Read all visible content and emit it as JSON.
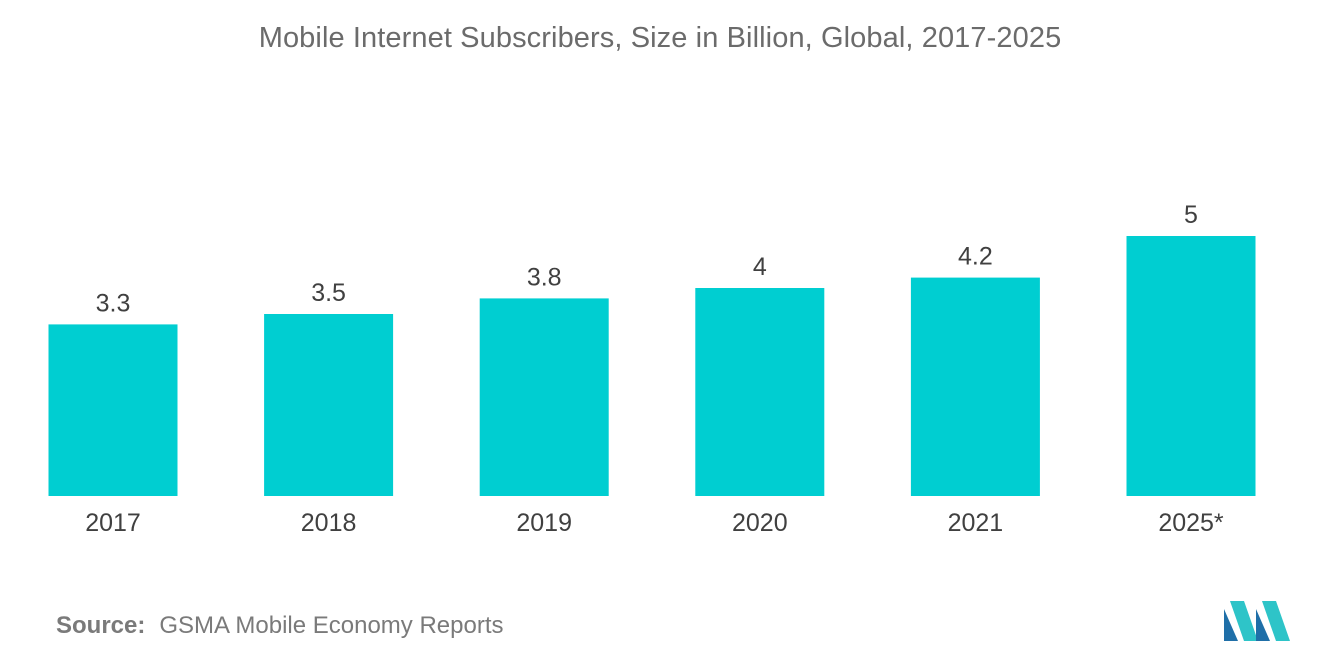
{
  "chart_data": {
    "type": "bar",
    "title": "Mobile Internet Subscribers, Size in Billion, Global, 2017-2025",
    "categories": [
      "2017",
      "2018",
      "2019",
      "2020",
      "2021",
      "2025*"
    ],
    "values": [
      3.3,
      3.5,
      3.8,
      4,
      4.2,
      5
    ],
    "value_labels": [
      "3.3",
      "3.5",
      "3.8",
      "4",
      "4.2",
      "5"
    ],
    "xlabel": "",
    "ylabel": "",
    "ylim": [
      0,
      5
    ],
    "grid": false,
    "legend": "none",
    "bar_color": "#00ced1"
  },
  "source": {
    "label": "Source:",
    "text": "GSMA Mobile Economy Reports"
  },
  "logo": {
    "icon": "mordor-intelligence-logo-icon",
    "colors": [
      "#1f6fa8",
      "#2ec4c8"
    ]
  }
}
